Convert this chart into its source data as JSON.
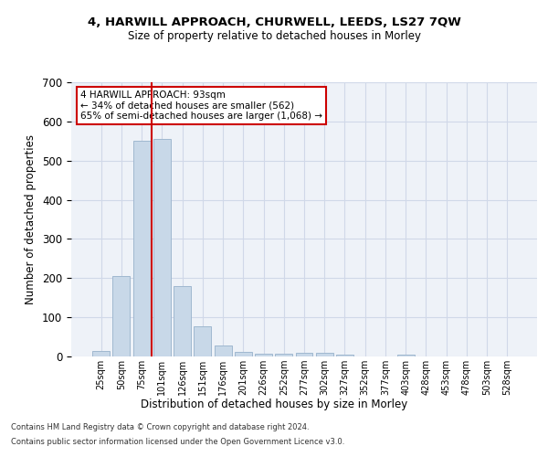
{
  "title1": "4, HARWILL APPROACH, CHURWELL, LEEDS, LS27 7QW",
  "title2": "Size of property relative to detached houses in Morley",
  "xlabel": "Distribution of detached houses by size in Morley",
  "ylabel": "Number of detached properties",
  "bin_labels": [
    "25sqm",
    "50sqm",
    "75sqm",
    "101sqm",
    "126sqm",
    "151sqm",
    "176sqm",
    "201sqm",
    "226sqm",
    "252sqm",
    "277sqm",
    "302sqm",
    "327sqm",
    "352sqm",
    "377sqm",
    "403sqm",
    "428sqm",
    "453sqm",
    "478sqm",
    "503sqm",
    "528sqm"
  ],
  "bar_values": [
    13,
    206,
    550,
    555,
    179,
    77,
    28,
    11,
    8,
    6,
    9,
    9,
    5,
    0,
    0,
    5,
    0,
    0,
    0,
    0,
    0
  ],
  "bar_color": "#c8d8e8",
  "bar_edgecolor": "#a0b8d0",
  "annotation_title": "4 HARWILL APPROACH: 93sqm",
  "annotation_line2": "← 34% of detached houses are smaller (562)",
  "annotation_line3": "65% of semi-detached houses are larger (1,068) →",
  "annotation_box_color": "#ffffff",
  "annotation_box_edgecolor": "#cc0000",
  "vline_color": "#cc0000",
  "grid_color": "#d0d8e8",
  "background_color": "#eef2f8",
  "footnote1": "Contains HM Land Registry data © Crown copyright and database right 2024.",
  "footnote2": "Contains public sector information licensed under the Open Government Licence v3.0.",
  "ylim": [
    0,
    700
  ],
  "yticks": [
    0,
    100,
    200,
    300,
    400,
    500,
    600,
    700
  ]
}
